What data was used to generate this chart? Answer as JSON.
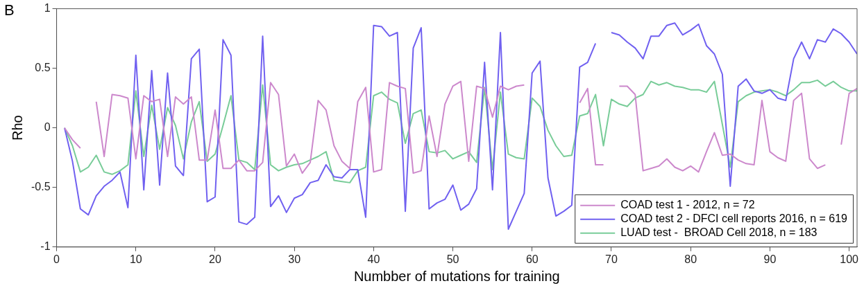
{
  "chart_data": {
    "type": "line",
    "xlabel": "Numbber of mutations for training",
    "ylabel": "Rho",
    "annotations": [
      "B"
    ],
    "x": [
      1,
      2,
      3,
      4,
      5,
      6,
      7,
      8,
      9,
      10,
      11,
      12,
      13,
      14,
      15,
      16,
      17,
      18,
      19,
      20,
      21,
      22,
      23,
      24,
      25,
      26,
      27,
      28,
      29,
      30,
      31,
      32,
      33,
      34,
      35,
      36,
      37,
      38,
      39,
      40,
      41,
      42,
      43,
      44,
      45,
      46,
      47,
      48,
      49,
      50,
      51,
      52,
      53,
      54,
      55,
      56,
      57,
      58,
      59,
      60,
      61,
      62,
      63,
      64,
      65,
      66,
      67,
      68,
      69,
      70,
      71,
      72,
      73,
      74,
      75,
      76,
      77,
      78,
      79,
      80,
      81,
      82,
      83,
      84,
      85,
      86,
      87,
      88,
      89,
      90,
      91,
      92,
      93,
      94,
      95,
      96,
      97,
      98,
      99,
      100,
      101
    ],
    "xlim": [
      0,
      101
    ],
    "xticks": [
      0,
      10,
      20,
      30,
      40,
      50,
      60,
      70,
      80,
      90,
      100
    ],
    "ylim": [
      -1,
      1
    ],
    "yticks": [
      -1,
      -0.5,
      0,
      0.5,
      1
    ],
    "grid": false,
    "legend": "bottom right",
    "marker": "none",
    "line_style": "solid",
    "series": [
      {
        "name": "COAD test 1 - 2012, n = 72",
        "color": "#cc88cc",
        "values": [
          0,
          -0.1,
          -0.17,
          null,
          0.22,
          -0.24,
          0.28,
          0.27,
          0.25,
          -0.26,
          0.27,
          0.22,
          0.24,
          -0.24,
          0.26,
          0.2,
          0.26,
          -0.27,
          -0.27,
          0.15,
          -0.34,
          -0.34,
          -0.27,
          -0.36,
          -0.36,
          -0.29,
          0.38,
          0.28,
          -0.32,
          -0.22,
          -0.38,
          -0.29,
          0.23,
          0.15,
          -0.15,
          -0.28,
          -0.34,
          0.22,
          0.34,
          -0.37,
          -0.35,
          0.38,
          0.35,
          0.33,
          -0.38,
          -0.36,
          0.1,
          -0.24,
          0.2,
          0.35,
          0.39,
          -0.28,
          0.35,
          0.33,
          0.09,
          0.35,
          0.32,
          0.35,
          0.36,
          null,
          null,
          null,
          null,
          null,
          null,
          0.21,
          0.33,
          -0.31,
          -0.31,
          null,
          0.35,
          0.35,
          0.28,
          -0.36,
          -0.34,
          -0.32,
          -0.26,
          -0.33,
          -0.36,
          -0.32,
          -0.37,
          -0.2,
          -0.04,
          -0.23,
          -0.22,
          -0.27,
          -0.3,
          -0.31,
          0.23,
          -0.2,
          -0.25,
          -0.28,
          0.23,
          0.29,
          -0.26,
          -0.34,
          -0.31,
          null,
          -0.14,
          0.29,
          0.33
        ]
      },
      {
        "name": "COAD test 2 - DFCI cell reports 2016, n = 619",
        "color": "#7060f0",
        "values": [
          0,
          -0.28,
          -0.68,
          -0.73,
          -0.57,
          -0.49,
          -0.44,
          -0.37,
          -0.67,
          0.61,
          -0.52,
          0.48,
          -0.48,
          0.46,
          -0.32,
          -0.4,
          0.58,
          0.66,
          -0.62,
          -0.58,
          0.74,
          0.61,
          -0.79,
          -0.81,
          -0.75,
          0.77,
          -0.66,
          -0.57,
          -0.71,
          -0.59,
          -0.56,
          -0.46,
          -0.44,
          -0.31,
          -0.41,
          -0.42,
          -0.35,
          -0.35,
          -0.75,
          0.86,
          0.85,
          0.77,
          0.8,
          -0.7,
          0.67,
          0.84,
          -0.68,
          -0.63,
          -0.6,
          -0.48,
          -0.69,
          -0.64,
          -0.51,
          0.55,
          -0.52,
          0.8,
          -0.85,
          -0.7,
          -0.55,
          0.46,
          0.56,
          -0.42,
          -0.74,
          -0.7,
          -0.65,
          0.51,
          0.55,
          0.71,
          null,
          0.8,
          0.78,
          0.72,
          0.67,
          0.58,
          0.77,
          0.77,
          0.86,
          0.88,
          0.78,
          0.82,
          0.87,
          0.69,
          0.62,
          0.45,
          -0.49,
          0.35,
          0.41,
          0.31,
          0.29,
          0.32,
          0.25,
          0.23,
          0.58,
          0.72,
          0.58,
          0.74,
          0.72,
          0.83,
          0.79,
          0.72,
          0.62
        ]
      },
      {
        "name": "LUAD test -  BROAD Cell 2018, n = 183",
        "color": "#78cc98",
        "values": [
          0,
          -0.15,
          -0.37,
          -0.33,
          -0.23,
          -0.37,
          -0.39,
          -0.36,
          -0.31,
          0.31,
          -0.24,
          0.19,
          -0.18,
          0.17,
          0.02,
          -0.26,
          0.05,
          0.22,
          -0.28,
          -0.22,
          0.02,
          0.27,
          -0.27,
          -0.29,
          -0.35,
          0.36,
          -0.31,
          -0.36,
          -0.33,
          -0.31,
          -0.3,
          -0.27,
          -0.24,
          -0.2,
          -0.44,
          -0.45,
          -0.46,
          -0.36,
          -0.33,
          0.27,
          0.3,
          0.24,
          0.21,
          -0.13,
          0.12,
          0.15,
          -0.2,
          -0.21,
          -0.19,
          -0.26,
          -0.23,
          -0.2,
          -0.29,
          0.34,
          -0.35,
          0.3,
          -0.22,
          -0.25,
          -0.26,
          0.25,
          0.18,
          -0.02,
          -0.15,
          -0.24,
          -0.23,
          0.1,
          0.12,
          0.28,
          -0.15,
          0.24,
          0.2,
          0.18,
          0.25,
          0.28,
          0.39,
          0.36,
          0.38,
          0.35,
          0.34,
          0.32,
          0.32,
          0.3,
          0.39,
          0.03,
          -0.33,
          0.22,
          0.27,
          0.3,
          0.31,
          0.32,
          0.3,
          0.27,
          0.32,
          0.38,
          0.38,
          0.4,
          0.35,
          0.39,
          0.34,
          0.31,
          0.31
        ]
      }
    ]
  }
}
